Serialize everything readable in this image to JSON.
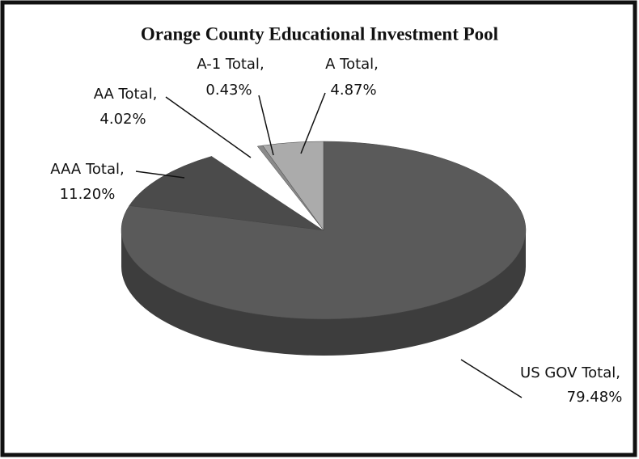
{
  "chart_data": {
    "type": "pie",
    "title": "Orange County Educational Investment Pool",
    "categories": [
      "US GOV Total,",
      "AAA Total,",
      "AA Total,",
      "A-1 Total,",
      "A Total,"
    ],
    "values": [
      79.48,
      11.2,
      4.02,
      0.43,
      4.87
    ],
    "value_labels": [
      "79.48%",
      "11.20%",
      "4.02%",
      "0.43%",
      "4.87%"
    ],
    "colors": [
      "#5a5a5a",
      "#4b4b4b",
      "#ffffff",
      "#8a8a8a",
      "#ababab"
    ]
  }
}
